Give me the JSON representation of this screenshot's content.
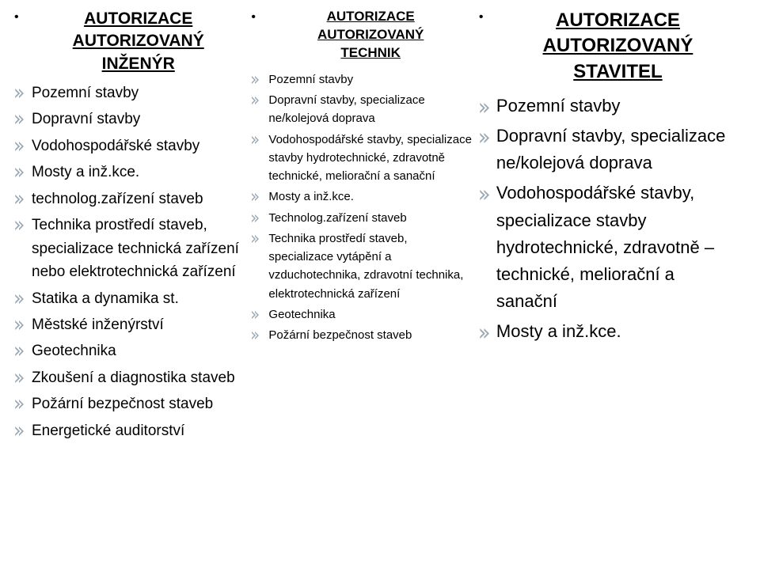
{
  "colors": {
    "arrow_chevron": "#9aa7b3",
    "text": "#000000",
    "background": "#ffffff"
  },
  "col1": {
    "heading_line1": "AUTORIZACE",
    "heading_line2": "AUTORIZOVANÝ",
    "heading_line3": "INŽENÝR",
    "items": [
      "Pozemní stavby",
      "Dopravní stavby",
      "Vodohospodářské stavby",
      "Mosty a inž.kce.",
      "technolog.zařízení staveb",
      "Technika prostředí staveb, specializace technická zařízení nebo elektrotechnická zařízení",
      "Statika a dynamika st.",
      "Městské inženýrství",
      "Geotechnika",
      "Zkoušení a diagnostika staveb",
      "Požární bezpečnost staveb",
      "Energetické auditorství"
    ]
  },
  "col2": {
    "heading_line1": "AUTORIZACE",
    "heading_line2": "AUTORIZOVANÝ",
    "heading_line3": "TECHNIK",
    "items": [
      "Pozemní stavby",
      "Dopravní stavby, specializace ne/kolejová doprava",
      "Vodohospodářské stavby, specializace stavby hydrotechnické, zdravotně technické, meliorační a sanační",
      "Mosty a inž.kce.",
      "Technolog.zařízení staveb",
      "Technika prostředí staveb, specializace vytápění a vzduchotechnika, zdravotní technika, elektrotechnická zařízení",
      "Geotechnika",
      "Požární bezpečnost staveb"
    ]
  },
  "col3": {
    "heading_line1": "AUTORIZACE",
    "heading_line2": "AUTORIZOVANÝ",
    "heading_line3": "STAVITEL",
    "items": [
      "Pozemní stavby",
      "Dopravní stavby, specializace ne/kolejová doprava",
      "Vodohospodářské stavby, specializace stavby hydrotechnické, zdravotně – technické, meliorační a sanační",
      "Mosty a inž.kce."
    ]
  }
}
